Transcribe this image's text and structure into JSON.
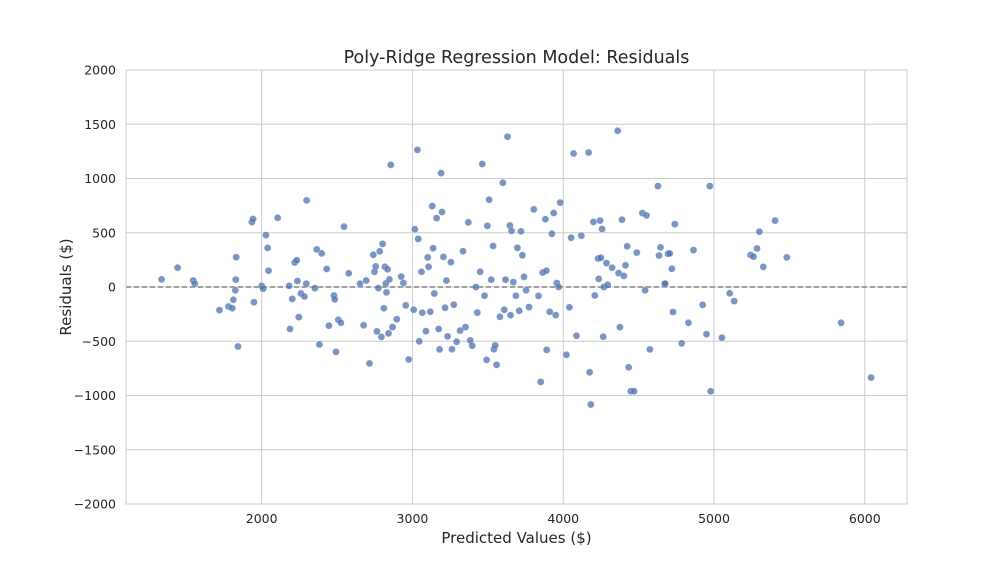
{
  "chart_data": {
    "type": "scatter",
    "title": "Poly-Ridge Regression Model: Residuals",
    "xlabel": "Predicted Values ($)",
    "ylabel": "Residuals ($)",
    "xlim": [
      1100,
      6280
    ],
    "ylim": [
      -2000,
      2000
    ],
    "xticks": [
      2000,
      3000,
      4000,
      5000,
      6000
    ],
    "yticks": [
      -2000,
      -1500,
      -1000,
      -500,
      0,
      500,
      1000,
      1500,
      2000
    ],
    "xtick_labels": [
      "2000",
      "3000",
      "4000",
      "5000",
      "6000"
    ],
    "ytick_labels": [
      "−2000",
      "−1500",
      "−1000",
      "−500",
      "0",
      "500",
      "1000",
      "1500",
      "2000"
    ],
    "grid": true,
    "reference_line": {
      "y": 0,
      "style": "dashed"
    },
    "colors": {
      "point": "#4c72b0",
      "grid": "#cccccc",
      "refline": "#808080"
    },
    "points": [
      [
        1336,
        70
      ],
      [
        1442,
        178
      ],
      [
        1546,
        60
      ],
      [
        1556,
        30
      ],
      [
        1720,
        -213
      ],
      [
        1780,
        -180
      ],
      [
        1805,
        -195
      ],
      [
        1812,
        -118
      ],
      [
        1825,
        -30
      ],
      [
        1828,
        68
      ],
      [
        1831,
        275
      ],
      [
        1843,
        -548
      ],
      [
        1935,
        598
      ],
      [
        1943,
        627
      ],
      [
        1948,
        -140
      ],
      [
        2000,
        10
      ],
      [
        2010,
        -15
      ],
      [
        2028,
        478
      ],
      [
        2040,
        360
      ],
      [
        2045,
        150
      ],
      [
        2106,
        638
      ],
      [
        2182,
        10
      ],
      [
        2188,
        -387
      ],
      [
        2203,
        -110
      ],
      [
        2219,
        226
      ],
      [
        2233,
        247
      ],
      [
        2237,
        55
      ],
      [
        2246,
        -277
      ],
      [
        2260,
        -60
      ],
      [
        2283,
        -88
      ],
      [
        2296,
        30
      ],
      [
        2298,
        798
      ],
      [
        2353,
        -10
      ],
      [
        2365,
        347
      ],
      [
        2383,
        -530
      ],
      [
        2398,
        310
      ],
      [
        2431,
        166
      ],
      [
        2446,
        -357
      ],
      [
        2479,
        -78
      ],
      [
        2485,
        -114
      ],
      [
        2493,
        -598
      ],
      [
        2508,
        -302
      ],
      [
        2525,
        -330
      ],
      [
        2546,
        557
      ],
      [
        2577,
        126
      ],
      [
        2652,
        30
      ],
      [
        2676,
        -353
      ],
      [
        2693,
        60
      ],
      [
        2715,
        -704
      ],
      [
        2740,
        297
      ],
      [
        2748,
        140
      ],
      [
        2756,
        190
      ],
      [
        2764,
        -409
      ],
      [
        2774,
        -10
      ],
      [
        2783,
        329
      ],
      [
        2794,
        -460
      ],
      [
        2802,
        397
      ],
      [
        2810,
        -195
      ],
      [
        2817,
        186
      ],
      [
        2823,
        32
      ],
      [
        2828,
        -50
      ],
      [
        2835,
        163
      ],
      [
        2841,
        -428
      ],
      [
        2847,
        70
      ],
      [
        2856,
        1125
      ],
      [
        2868,
        -370
      ],
      [
        2896,
        -297
      ],
      [
        2925,
        96
      ],
      [
        2940,
        37
      ],
      [
        2955,
        -170
      ],
      [
        2975,
        -668
      ],
      [
        3008,
        -210
      ],
      [
        3016,
        533
      ],
      [
        3033,
        1264
      ],
      [
        3038,
        443
      ],
      [
        3045,
        -500
      ],
      [
        3060,
        140
      ],
      [
        3065,
        -237
      ],
      [
        3089,
        -406
      ],
      [
        3101,
        273
      ],
      [
        3107,
        186
      ],
      [
        3118,
        -228
      ],
      [
        3131,
        746
      ],
      [
        3137,
        358
      ],
      [
        3145,
        -60
      ],
      [
        3160,
        635
      ],
      [
        3174,
        -387
      ],
      [
        3180,
        -575
      ],
      [
        3190,
        1050
      ],
      [
        3196,
        691
      ],
      [
        3205,
        277
      ],
      [
        3216,
        -192
      ],
      [
        3225,
        60
      ],
      [
        3233,
        -455
      ],
      [
        3255,
        229
      ],
      [
        3262,
        -573
      ],
      [
        3274,
        -163
      ],
      [
        3293,
        -505
      ],
      [
        3316,
        -402
      ],
      [
        3335,
        330
      ],
      [
        3352,
        -370
      ],
      [
        3370,
        595
      ],
      [
        3383,
        -492
      ],
      [
        3397,
        -541
      ],
      [
        3421,
        0
      ],
      [
        3430,
        -236
      ],
      [
        3449,
        140
      ],
      [
        3463,
        1134
      ],
      [
        3478,
        -80
      ],
      [
        3492,
        -672
      ],
      [
        3496,
        563
      ],
      [
        3508,
        805
      ],
      [
        3522,
        67
      ],
      [
        3535,
        378
      ],
      [
        3540,
        -574
      ],
      [
        3549,
        -538
      ],
      [
        3558,
        -718
      ],
      [
        3580,
        -275
      ],
      [
        3600,
        960
      ],
      [
        3609,
        -210
      ],
      [
        3617,
        67
      ],
      [
        3630,
        1385
      ],
      [
        3646,
        567
      ],
      [
        3650,
        -260
      ],
      [
        3657,
        517
      ],
      [
        3669,
        45
      ],
      [
        3686,
        -80
      ],
      [
        3696,
        360
      ],
      [
        3708,
        -219
      ],
      [
        3720,
        512
      ],
      [
        3729,
        292
      ],
      [
        3740,
        93
      ],
      [
        3754,
        -30
      ],
      [
        3773,
        -185
      ],
      [
        3805,
        715
      ],
      [
        3836,
        -82
      ],
      [
        3851,
        -875
      ],
      [
        3864,
        134
      ],
      [
        3882,
        625
      ],
      [
        3888,
        150
      ],
      [
        3890,
        -580
      ],
      [
        3910,
        -229
      ],
      [
        3925,
        490
      ],
      [
        3937,
        682
      ],
      [
        3950,
        -259
      ],
      [
        3957,
        37
      ],
      [
        3970,
        0
      ],
      [
        3980,
        778
      ],
      [
        4021,
        -625
      ],
      [
        4041,
        -187
      ],
      [
        4052,
        453
      ],
      [
        4069,
        1230
      ],
      [
        4088,
        -450
      ],
      [
        4120,
        473
      ],
      [
        4168,
        1240
      ],
      [
        4175,
        -786
      ],
      [
        4183,
        -1083
      ],
      [
        4200,
        600
      ],
      [
        4209,
        -78
      ],
      [
        4231,
        263
      ],
      [
        4235,
        75
      ],
      [
        4244,
        612
      ],
      [
        4250,
        270
      ],
      [
        4258,
        535
      ],
      [
        4265,
        -458
      ],
      [
        4270,
        0
      ],
      [
        4287,
        220
      ],
      [
        4295,
        20
      ],
      [
        4324,
        178
      ],
      [
        4361,
        1440
      ],
      [
        4367,
        128
      ],
      [
        4376,
        -370
      ],
      [
        4390,
        620
      ],
      [
        4402,
        102
      ],
      [
        4413,
        200
      ],
      [
        4424,
        375
      ],
      [
        4434,
        -740
      ],
      [
        4448,
        -960
      ],
      [
        4470,
        -960
      ],
      [
        4488,
        317
      ],
      [
        4525,
        681
      ],
      [
        4543,
        -30
      ],
      [
        4552,
        660
      ],
      [
        4575,
        -575
      ],
      [
        4628,
        930
      ],
      [
        4635,
        290
      ],
      [
        4645,
        365
      ],
      [
        4672,
        30
      ],
      [
        4676,
        30
      ],
      [
        4695,
        305
      ],
      [
        4706,
        310
      ],
      [
        4720,
        168
      ],
      [
        4728,
        -230
      ],
      [
        4740,
        580
      ],
      [
        4786,
        -520
      ],
      [
        4830,
        -330
      ],
      [
        4864,
        340
      ],
      [
        4925,
        -165
      ],
      [
        4950,
        -435
      ],
      [
        4972,
        930
      ],
      [
        4978,
        -960
      ],
      [
        5052,
        -467
      ],
      [
        5104,
        -58
      ],
      [
        5134,
        -130
      ],
      [
        5243,
        295
      ],
      [
        5262,
        280
      ],
      [
        5285,
        355
      ],
      [
        5301,
        510
      ],
      [
        5327,
        185
      ],
      [
        5405,
        612
      ],
      [
        5483,
        273
      ],
      [
        5843,
        -330
      ],
      [
        6042,
        -835
      ]
    ]
  }
}
